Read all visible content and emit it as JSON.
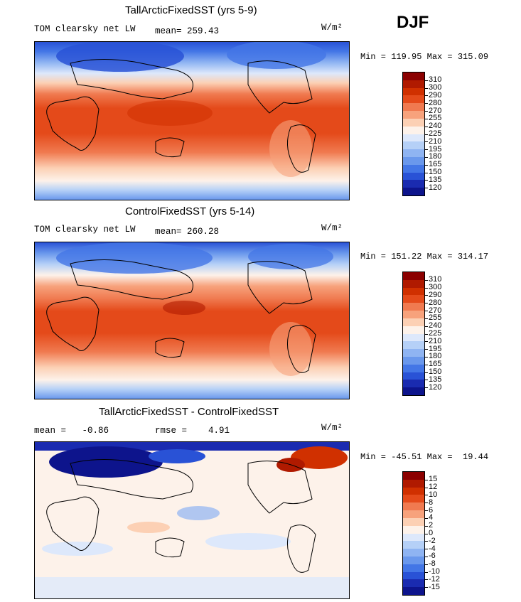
{
  "season": "DJF",
  "units": "W/m²",
  "chart_data": [
    {
      "type": "heatmap",
      "title": "TallArcticFixedSST (yrs 5-9)",
      "variable": "TOM clearsky net LW",
      "mean_label": "mean= 259.43",
      "units": "W/m²",
      "min_max": "Min = 119.95 Max = 315.09",
      "colorbar_levels": [
        "310",
        "300",
        "290",
        "280",
        "270",
        "255",
        "240",
        "225",
        "210",
        "195",
        "180",
        "165",
        "150",
        "135",
        "120"
      ],
      "colorbar_colors": [
        "#8b0000",
        "#b01a00",
        "#d03000",
        "#e44a1a",
        "#f07a50",
        "#f7a27c",
        "#fcd0b4",
        "#fdf2ea",
        "#dde8fb",
        "#b5d0f7",
        "#8fb4f2",
        "#6a98ec",
        "#4376e6",
        "#2952d6",
        "#1a2bb0",
        "#0d148c"
      ],
      "min": 119.95,
      "max": 315.09,
      "mean": 259.43
    },
    {
      "type": "heatmap",
      "title": "ControlFixedSST (yrs 5-14)",
      "variable": "TOM clearsky net LW",
      "mean_label": "mean= 260.28",
      "units": "W/m²",
      "min_max": "Min = 151.22 Max = 314.17",
      "colorbar_levels": [
        "310",
        "300",
        "290",
        "280",
        "270",
        "255",
        "240",
        "225",
        "210",
        "195",
        "180",
        "165",
        "150",
        "135",
        "120"
      ],
      "colorbar_colors": [
        "#8b0000",
        "#b01a00",
        "#d03000",
        "#e44a1a",
        "#f07a50",
        "#f7a27c",
        "#fcd0b4",
        "#fdf2ea",
        "#dde8fb",
        "#b5d0f7",
        "#8fb4f2",
        "#6a98ec",
        "#4376e6",
        "#2952d6",
        "#1a2bb0",
        "#0d148c"
      ],
      "min": 151.22,
      "max": 314.17,
      "mean": 260.28
    },
    {
      "type": "heatmap",
      "title": "TallArcticFixedSST - ControlFixedSST",
      "mean_label": "mean =   -0.86",
      "rmse_label": "rmse =    4.91",
      "units": "W/m²",
      "min_max": "Min = -45.51 Max =  19.44",
      "colorbar_levels": [
        "15",
        "12",
        "10",
        "8",
        "6",
        "4",
        "2",
        "0",
        "-2",
        "-4",
        "-6",
        "-8",
        "-10",
        "-12",
        "-15"
      ],
      "colorbar_colors": [
        "#8b0000",
        "#b01a00",
        "#d03000",
        "#e44a1a",
        "#f07a50",
        "#f7a27c",
        "#fcd0b4",
        "#fdf2ea",
        "#dde8fb",
        "#b5d0f7",
        "#8fb4f2",
        "#6a98ec",
        "#4376e6",
        "#2952d6",
        "#1a2bb0",
        "#0d148c"
      ],
      "min": -45.51,
      "max": 19.44,
      "mean": -0.86,
      "rmse": 4.91
    }
  ]
}
